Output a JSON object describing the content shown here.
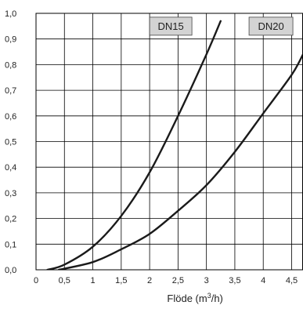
{
  "chart_data": {
    "type": "line",
    "xlabel": "Flöde (m",
    "xlabel_sup": "3",
    "xlabel_tail": "/h)",
    "xlim": [
      0,
      4.7
    ],
    "ylim": [
      0,
      1.0
    ],
    "x_ticks": [
      "0",
      "0,5",
      "1",
      "1,5",
      "2",
      "2,5",
      "3",
      "3,5",
      "4",
      "4,5"
    ],
    "x_tick_values": [
      0,
      0.5,
      1,
      1.5,
      2,
      2.5,
      3,
      3.5,
      4,
      4.5
    ],
    "y_ticks": [
      "0,0",
      "0,1",
      "0,2",
      "0,3",
      "0,4",
      "0,5",
      "0,6",
      "0,7",
      "0,8",
      "0,9",
      "1,0"
    ],
    "y_tick_values": [
      0,
      0.1,
      0.2,
      0.3,
      0.4,
      0.5,
      0.6,
      0.7,
      0.8,
      0.9,
      1.0
    ],
    "grid": true,
    "colors": {
      "curve": "#1a1a1a",
      "label_box": "#d3d3d3",
      "grid": "#000000"
    },
    "series": [
      {
        "name": "DN15",
        "x": [
          0.2,
          0.5,
          1.0,
          1.5,
          2.0,
          2.5,
          3.0,
          3.25
        ],
        "y": [
          0.0,
          0.02,
          0.09,
          0.21,
          0.38,
          0.6,
          0.84,
          0.97
        ]
      },
      {
        "name": "DN20",
        "x": [
          0.4,
          1.0,
          1.5,
          2.0,
          2.5,
          3.0,
          3.5,
          4.0,
          4.5,
          4.7
        ],
        "y": [
          0.0,
          0.03,
          0.08,
          0.14,
          0.23,
          0.33,
          0.46,
          0.61,
          0.76,
          0.84
        ]
      }
    ]
  }
}
